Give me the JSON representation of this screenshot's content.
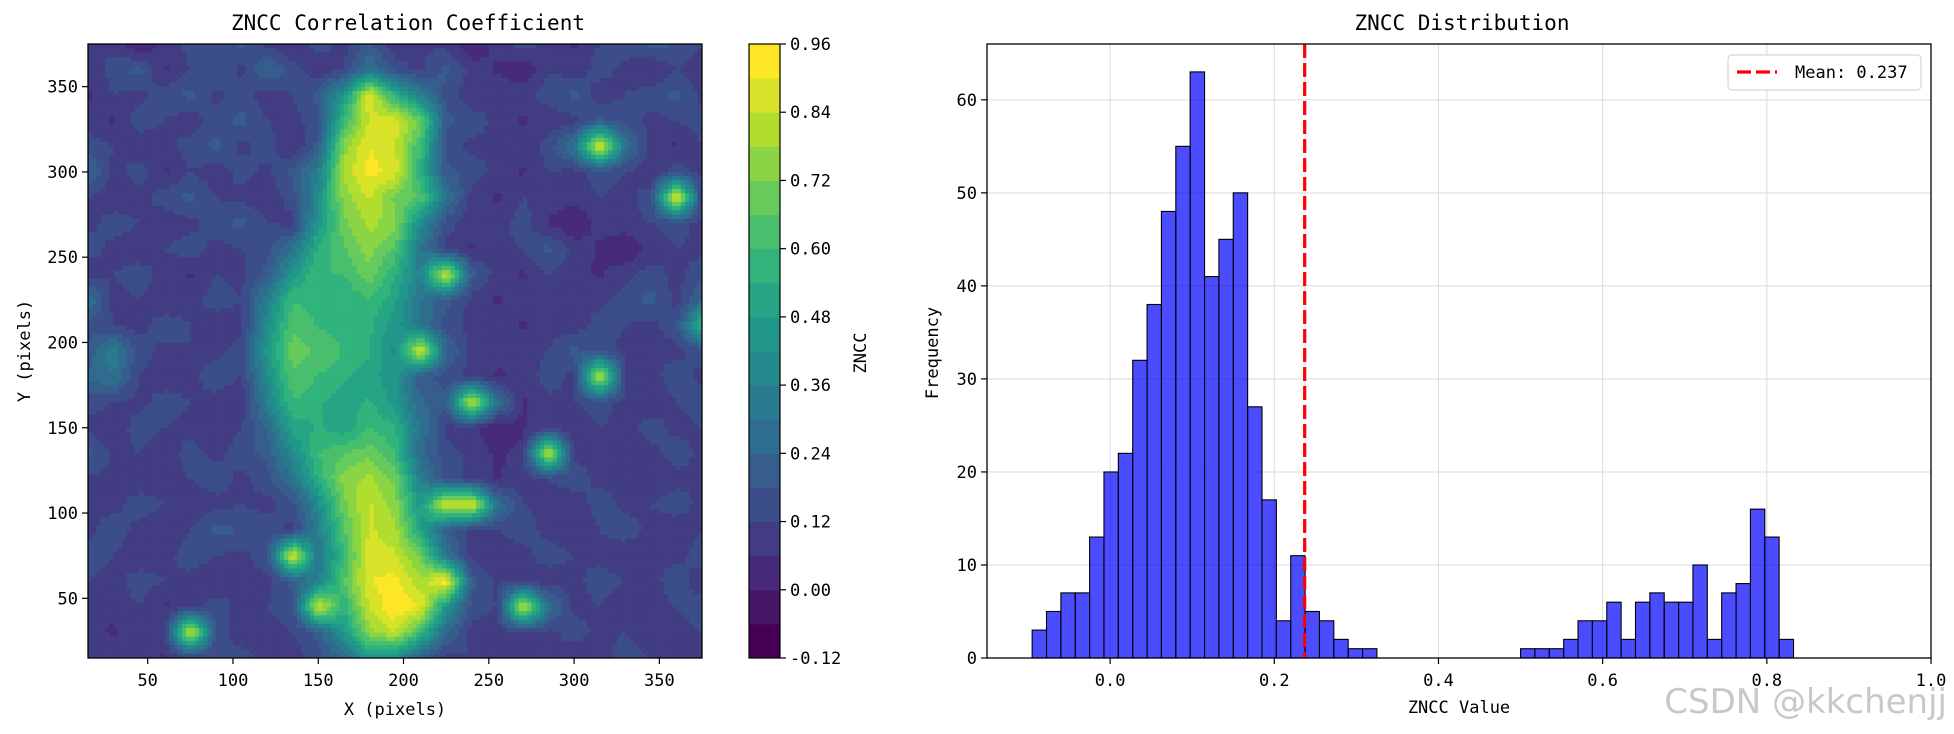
{
  "chart_data": [
    {
      "type": "heatmap",
      "title": "ZNCC Correlation Coefficient",
      "xlabel": "X (pixels)",
      "ylabel": "Y (pixels)",
      "xlim": [
        15,
        375
      ],
      "ylim": [
        15,
        375
      ],
      "x_ticks": [
        50,
        100,
        150,
        200,
        250,
        300,
        350
      ],
      "y_ticks": [
        50,
        100,
        150,
        200,
        250,
        300,
        350
      ],
      "grid_x": [
        15,
        30,
        45,
        60,
        75,
        90,
        105,
        120,
        135,
        150,
        165,
        180,
        195,
        210,
        225,
        240,
        255,
        270,
        285,
        300,
        315,
        330,
        345,
        360,
        375
      ],
      "grid_y": [
        375,
        360,
        345,
        330,
        315,
        300,
        285,
        270,
        255,
        240,
        225,
        210,
        195,
        180,
        165,
        150,
        135,
        120,
        105,
        90,
        75,
        60,
        45,
        30,
        15
      ],
      "z": [
        [
          0.12,
          0.1,
          0.0,
          0.08,
          0.15,
          0.12,
          0.2,
          0.1,
          0.05,
          0.15,
          0.1,
          0.2,
          0.08,
          0.12,
          0.1,
          0.0,
          0.08,
          0.15,
          0.1,
          0.05,
          0.12,
          0.15,
          0.2,
          0.18,
          0.12
        ],
        [
          0.08,
          0.15,
          0.2,
          0.05,
          0.12,
          0.18,
          0.1,
          0.25,
          0.15,
          0.08,
          0.12,
          0.3,
          0.15,
          0.1,
          0.2,
          0.1,
          0.05,
          0.0,
          0.12,
          0.08,
          0.15,
          0.1,
          0.05,
          0.12,
          0.08
        ],
        [
          0.05,
          0.12,
          0.1,
          0.15,
          0.2,
          0.1,
          0.15,
          0.08,
          0.12,
          0.2,
          0.45,
          0.9,
          0.55,
          0.35,
          0.15,
          0.08,
          0.12,
          0.1,
          0.15,
          0.2,
          0.08,
          0.12,
          0.15,
          0.2,
          0.1
        ],
        [
          0.1,
          0.05,
          0.15,
          0.12,
          0.08,
          0.15,
          0.2,
          0.12,
          0.1,
          0.15,
          0.6,
          0.85,
          0.88,
          0.7,
          0.2,
          0.15,
          0.1,
          0.05,
          0.08,
          0.1,
          0.2,
          0.15,
          0.1,
          0.12,
          0.15
        ],
        [
          0.15,
          0.12,
          0.08,
          0.1,
          0.15,
          0.2,
          0.1,
          0.15,
          0.05,
          0.2,
          0.75,
          0.9,
          0.85,
          0.6,
          0.15,
          0.1,
          0.12,
          0.08,
          0.15,
          0.3,
          0.92,
          0.3,
          0.1,
          0.05,
          0.12
        ],
        [
          0.25,
          0.1,
          0.15,
          0.05,
          0.12,
          0.08,
          0.15,
          0.1,
          0.2,
          0.35,
          0.8,
          0.92,
          0.88,
          0.55,
          0.2,
          0.15,
          0.1,
          0.05,
          0.12,
          0.1,
          0.15,
          0.12,
          0.08,
          0.15,
          0.1
        ],
        [
          0.12,
          0.08,
          0.1,
          0.15,
          0.2,
          0.12,
          0.1,
          0.08,
          0.15,
          0.4,
          0.75,
          0.85,
          0.7,
          0.65,
          0.3,
          0.1,
          0.05,
          0.12,
          0.1,
          0.08,
          0.12,
          0.1,
          0.15,
          0.92,
          0.12
        ],
        [
          0.1,
          0.15,
          0.12,
          0.08,
          0.1,
          0.15,
          0.2,
          0.12,
          0.1,
          0.45,
          0.7,
          0.8,
          0.75,
          0.4,
          0.15,
          0.08,
          0.1,
          0.15,
          0.05,
          0.0,
          0.08,
          0.1,
          0.12,
          0.15,
          0.1
        ],
        [
          0.15,
          0.1,
          0.08,
          0.12,
          0.15,
          0.1,
          0.12,
          0.15,
          0.3,
          0.55,
          0.65,
          0.75,
          0.65,
          0.3,
          0.1,
          0.05,
          0.1,
          0.12,
          0.2,
          0.1,
          0.05,
          0.0,
          0.08,
          0.12,
          0.1
        ],
        [
          0.08,
          0.12,
          0.15,
          0.1,
          0.05,
          0.12,
          0.1,
          0.2,
          0.45,
          0.6,
          0.6,
          0.7,
          0.55,
          0.35,
          0.88,
          0.2,
          0.1,
          0.05,
          0.12,
          0.08,
          0.05,
          0.1,
          0.15,
          0.1,
          0.15
        ],
        [
          0.3,
          0.1,
          0.12,
          0.08,
          0.1,
          0.15,
          0.12,
          0.35,
          0.6,
          0.55,
          0.55,
          0.6,
          0.5,
          0.3,
          0.2,
          0.1,
          0.05,
          0.1,
          0.08,
          0.12,
          0.1,
          0.15,
          0.2,
          0.1,
          0.25
        ],
        [
          0.15,
          0.12,
          0.1,
          0.15,
          0.12,
          0.08,
          0.1,
          0.4,
          0.65,
          0.6,
          0.55,
          0.55,
          0.45,
          0.3,
          0.15,
          0.1,
          0.12,
          0.05,
          0.1,
          0.08,
          0.15,
          0.12,
          0.1,
          0.15,
          0.6
        ],
        [
          0.2,
          0.35,
          0.15,
          0.1,
          0.12,
          0.1,
          0.15,
          0.45,
          0.7,
          0.65,
          0.6,
          0.55,
          0.4,
          0.88,
          0.25,
          0.1,
          0.08,
          0.1,
          0.12,
          0.2,
          0.15,
          0.1,
          0.12,
          0.1,
          0.15
        ],
        [
          0.25,
          0.3,
          0.12,
          0.08,
          0.1,
          0.15,
          0.12,
          0.4,
          0.65,
          0.6,
          0.55,
          0.5,
          0.45,
          0.2,
          0.15,
          0.1,
          0.05,
          0.08,
          0.15,
          0.1,
          0.88,
          0.12,
          0.1,
          0.15,
          0.1
        ],
        [
          0.15,
          0.12,
          0.1,
          0.15,
          0.12,
          0.1,
          0.08,
          0.35,
          0.6,
          0.55,
          0.5,
          0.55,
          0.45,
          0.25,
          0.2,
          0.88,
          0.3,
          0.05,
          0.1,
          0.12,
          0.15,
          0.1,
          0.08,
          0.12,
          0.15
        ],
        [
          0.1,
          0.08,
          0.15,
          0.12,
          0.1,
          0.08,
          0.12,
          0.25,
          0.5,
          0.55,
          0.5,
          0.6,
          0.55,
          0.3,
          0.1,
          0.08,
          0.0,
          0.05,
          0.1,
          0.08,
          0.12,
          0.1,
          0.15,
          0.1,
          0.12
        ],
        [
          0.2,
          0.1,
          0.12,
          0.08,
          0.15,
          0.1,
          0.15,
          0.2,
          0.4,
          0.6,
          0.65,
          0.7,
          0.6,
          0.25,
          0.15,
          0.1,
          0.05,
          0.08,
          0.88,
          0.1,
          0.12,
          0.08,
          0.1,
          0.15,
          0.1
        ],
        [
          0.1,
          0.12,
          0.08,
          0.1,
          0.12,
          0.15,
          0.1,
          0.15,
          0.3,
          0.55,
          0.75,
          0.8,
          0.7,
          0.35,
          0.15,
          0.1,
          0.05,
          0.1,
          0.12,
          0.15,
          0.1,
          0.12,
          0.08,
          0.1,
          0.12
        ],
        [
          0.12,
          0.1,
          0.15,
          0.12,
          0.08,
          0.1,
          0.12,
          0.1,
          0.15,
          0.4,
          0.7,
          0.85,
          0.75,
          0.45,
          0.88,
          0.9,
          0.3,
          0.12,
          0.1,
          0.08,
          0.15,
          0.1,
          0.12,
          0.15,
          0.1
        ],
        [
          0.1,
          0.15,
          0.1,
          0.08,
          0.12,
          0.2,
          0.18,
          0.15,
          0.1,
          0.35,
          0.65,
          0.85,
          0.8,
          0.5,
          0.2,
          0.1,
          0.12,
          0.15,
          0.1,
          0.08,
          0.12,
          0.15,
          0.1,
          0.08,
          0.12
        ],
        [
          0.15,
          0.12,
          0.08,
          0.1,
          0.15,
          0.12,
          0.1,
          0.15,
          0.9,
          0.3,
          0.6,
          0.88,
          0.85,
          0.7,
          0.3,
          0.1,
          0.08,
          0.1,
          0.15,
          0.12,
          0.1,
          0.08,
          0.12,
          0.1,
          0.15
        ],
        [
          0.12,
          0.1,
          0.15,
          0.12,
          0.1,
          0.08,
          0.12,
          0.1,
          0.2,
          0.35,
          0.65,
          0.9,
          0.92,
          0.8,
          0.95,
          0.2,
          0.1,
          0.12,
          0.08,
          0.1,
          0.15,
          0.12,
          0.1,
          0.15,
          0.08
        ],
        [
          0.1,
          0.08,
          0.12,
          0.05,
          0.1,
          0.15,
          0.1,
          0.12,
          0.15,
          0.88,
          0.55,
          0.85,
          0.95,
          0.9,
          0.45,
          0.15,
          0.12,
          0.88,
          0.3,
          0.1,
          0.12,
          0.08,
          0.1,
          0.12,
          0.15
        ],
        [
          0.08,
          0.05,
          0.1,
          0.12,
          0.9,
          0.15,
          0.08,
          0.1,
          0.12,
          0.2,
          0.45,
          0.75,
          0.85,
          0.6,
          0.25,
          0.1,
          0.08,
          0.12,
          0.1,
          0.15,
          0.1,
          0.12,
          0.08,
          0.1,
          0.12
        ],
        [
          0.1,
          0.12,
          0.08,
          0.05,
          0.1,
          0.12,
          0.15,
          0.1,
          0.08,
          0.15,
          0.25,
          0.45,
          0.4,
          0.2,
          0.1,
          0.12,
          0.08,
          0.1,
          0.12,
          0.08,
          0.1,
          0.15,
          0.12,
          0.1,
          0.08
        ]
      ],
      "colorbar": {
        "label": "ZNCC",
        "levels": [
          -0.12,
          -0.06,
          0.0,
          0.06,
          0.12,
          0.18,
          0.24,
          0.3,
          0.36,
          0.42,
          0.48,
          0.54,
          0.6,
          0.66,
          0.72,
          0.78,
          0.84,
          0.9,
          0.96
        ],
        "ticks": [
          -0.12,
          0.0,
          0.12,
          0.24,
          0.36,
          0.48,
          0.6,
          0.72,
          0.84,
          0.96
        ],
        "tick_labels": [
          "-0.12",
          "0.00",
          "0.12",
          "0.24",
          "0.36",
          "0.48",
          "0.60",
          "0.72",
          "0.84",
          "0.96"
        ],
        "colormap": "viridis"
      }
    },
    {
      "type": "bar",
      "title": "ZNCC Distribution",
      "xlabel": "ZNCC Value",
      "ylabel": "Frequency",
      "xlim": [
        -0.15,
        1.0
      ],
      "ylim": [
        0,
        66
      ],
      "x_ticks": [
        0.0,
        0.2,
        0.4,
        0.6,
        0.8,
        1.0
      ],
      "x_tick_labels": [
        "0.0",
        "0.2",
        "0.4",
        "0.6",
        "0.8",
        "1.0"
      ],
      "y_ticks": [
        0,
        10,
        20,
        30,
        40,
        50,
        60
      ],
      "grid": true,
      "bar_color": "#0000ff",
      "bin_start": -0.095,
      "bin_width": 0.0175,
      "counts": [
        3,
        5,
        7,
        7,
        13,
        20,
        22,
        32,
        38,
        48,
        55,
        63,
        41,
        45,
        50,
        27,
        17,
        4,
        11,
        5,
        4,
        2,
        1,
        1,
        0,
        0,
        0,
        0,
        0,
        0,
        0,
        0,
        0,
        0,
        1,
        1,
        1,
        2,
        4,
        4,
        6,
        2,
        6,
        7,
        6,
        6,
        10,
        2,
        7,
        8,
        16,
        13,
        2
      ],
      "mean_line": {
        "value": 0.237,
        "color": "#ff0000"
      },
      "legend": {
        "label": "Mean: 0.237",
        "placement": "top-right"
      }
    }
  ],
  "watermark": "CSDN @kkchenjj"
}
